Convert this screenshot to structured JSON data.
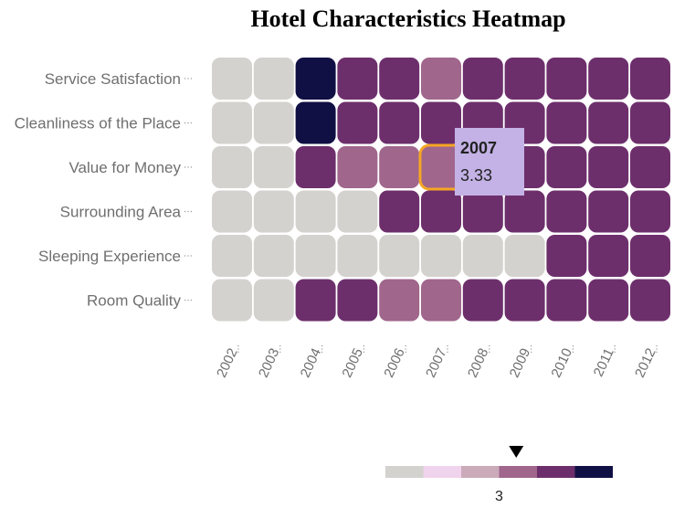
{
  "chart_data": {
    "type": "heatmap",
    "title": "Hotel Characteristics Heatmap",
    "x_categories": [
      "2002",
      "2003",
      "2004",
      "2005",
      "2006",
      "2007",
      "2008",
      "2009",
      "2010",
      "2011",
      "2012"
    ],
    "y_categories": [
      "Service Satisfaction",
      "Cleanliness of the Place",
      "Value for Money",
      "Surrounding Area",
      "Sleeping Experience",
      "Room Quality"
    ],
    "values": [
      [
        0,
        0,
        5,
        4,
        4,
        3,
        4,
        4,
        4,
        4,
        4
      ],
      [
        0,
        0,
        5,
        4,
        4,
        4,
        4,
        4,
        4,
        4,
        4
      ],
      [
        0,
        0,
        4,
        3,
        3,
        3.33,
        4,
        4,
        4,
        4,
        4
      ],
      [
        0,
        0,
        0,
        0,
        4,
        4,
        4,
        4,
        4,
        4,
        4
      ],
      [
        0,
        0,
        0,
        0,
        0,
        0,
        0,
        0,
        4,
        4,
        4
      ],
      [
        0,
        0,
        4,
        4,
        3,
        3,
        4,
        4,
        4,
        4,
        4
      ]
    ],
    "color_scale": {
      "colors": [
        "#d4d2ce",
        "#f0d3ec",
        "#cbaab9",
        "#a0668c",
        "#6d2f6c",
        "#111044"
      ],
      "thresholds": [
        1,
        2,
        3,
        4,
        5
      ]
    },
    "legend": {
      "position": "bottom-right",
      "label": "3",
      "pointer_value": 3.33
    },
    "highlight": {
      "row": 2,
      "col": 5,
      "outline_color": "#f5a623"
    },
    "tooltip": {
      "title": "2007",
      "value": "3.33",
      "background": "#c4b2e6"
    }
  }
}
